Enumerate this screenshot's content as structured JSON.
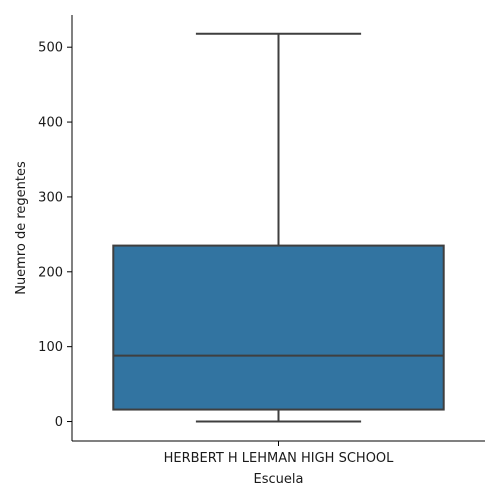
{
  "chart_data": {
    "type": "box",
    "title": "",
    "xlabel": "Escuela",
    "ylabel": "Nuemro de regentes",
    "categories": [
      "HERBERT H LEHMAN HIGH SCHOOL"
    ],
    "boxes": [
      {
        "category": "HERBERT H LEHMAN HIGH SCHOOL",
        "whisker_low": 0,
        "q1": 16,
        "median": 88,
        "q3": 235,
        "whisker_high": 518
      }
    ],
    "ylim": [
      -26,
      543
    ],
    "yticks": [
      0,
      100,
      200,
      300,
      400,
      500
    ],
    "grid": false,
    "colors": {
      "box": "#3274a1",
      "line": "#3f3f3f",
      "axis": "#000000"
    }
  }
}
